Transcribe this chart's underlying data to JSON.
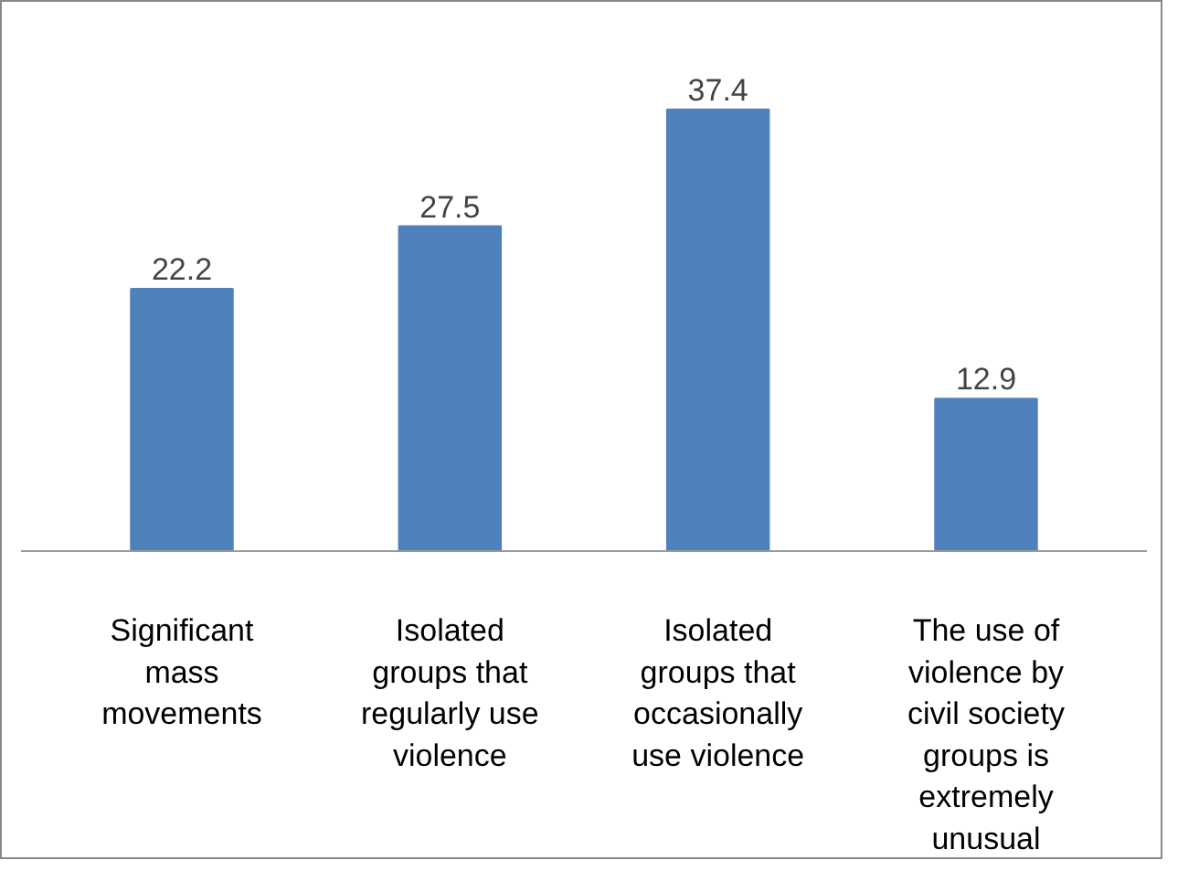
{
  "chart_data": {
    "type": "bar",
    "categories": [
      "Significant mass movements",
      "Isolated groups that regularly use violence",
      "Isolated groups that occasionally use violence",
      "The use of violence by civil society groups is extremely unusual"
    ],
    "values": [
      22.2,
      27.5,
      37.4,
      12.9
    ],
    "color": "#4f81bd",
    "data_labels": true
  }
}
